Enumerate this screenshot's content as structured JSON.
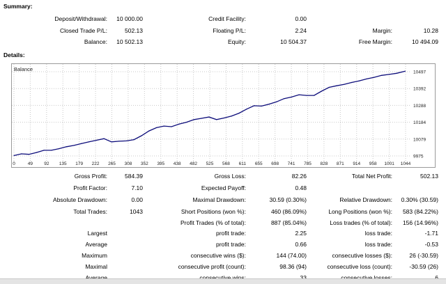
{
  "summary": {
    "title": "Summary:",
    "deposit_label": "Deposit/Withdrawal:",
    "deposit_value": "10 000.00",
    "credit_label": "Credit Facility:",
    "credit_value": "0.00",
    "closed_label": "Closed Trade P/L:",
    "closed_value": "502.13",
    "floating_label": "Floating P/L:",
    "floating_value": "2.24",
    "margin_label": "Margin:",
    "margin_value": "10.28",
    "balance_label": "Balance:",
    "balance_value": "10 502.13",
    "equity_label": "Equity:",
    "equity_value": "10 504.37",
    "free_margin_label": "Free Margin:",
    "free_margin_value": "10 494.09"
  },
  "details": {
    "title": "Details:",
    "rows": [
      {
        "c1l": "Gross Profit:",
        "c1v": "584.39",
        "c2l": "Gross Loss:",
        "c2v": "82.26",
        "c3l": "Total Net Profit:",
        "c3v": "502.13"
      },
      {
        "c1l": "Profit Factor:",
        "c1v": "7.10",
        "c2l": "Expected Payoff:",
        "c2v": "0.48",
        "c3l": "",
        "c3v": ""
      },
      {
        "c1l": "Absolute Drawdown:",
        "c1v": "0.00",
        "c2l": "Maximal Drawdown:",
        "c2v": "30.59 (0.30%)",
        "c3l": "Relative Drawdown:",
        "c3v": "0.30% (30.59)"
      },
      {
        "c1l": "Total Trades:",
        "c1v": "1043",
        "c2l": "Short Positions (won %):",
        "c2v": "460 (86.09%)",
        "c3l": "Long Positions (won %):",
        "c3v": "583 (84.22%)"
      },
      {
        "c1l": "",
        "c1v": "",
        "c2l": "Profit Trades (% of total):",
        "c2v": "887 (85.04%)",
        "c3l": "Loss trades (% of total):",
        "c3v": "156 (14.96%)"
      },
      {
        "c1l": "Largest",
        "c1v": "",
        "c2l": "profit trade:",
        "c2v": "2.25",
        "c3l": "loss trade:",
        "c3v": "-1.71"
      },
      {
        "c1l": "Average",
        "c1v": "",
        "c2l": "profit trade:",
        "c2v": "0.66",
        "c3l": "loss trade:",
        "c3v": "-0.53"
      },
      {
        "c1l": "Maximum",
        "c1v": "",
        "c2l": "consecutive wins ($):",
        "c2v": "144 (74.00)",
        "c3l": "consecutive losses ($):",
        "c3v": "26 (-30.59)"
      },
      {
        "c1l": "Maximal",
        "c1v": "",
        "c2l": "consecutive profit (count):",
        "c2v": "98.36 (94)",
        "c3l": "consecutive loss (count):",
        "c3v": "-30.59 (26)"
      },
      {
        "c1l": "Average",
        "c1v": "",
        "c2l": "consecutive wins:",
        "c2v": "33",
        "c3l": "consecutive losses:",
        "c3v": "6"
      }
    ]
  },
  "chart_data": {
    "type": "line",
    "title": "",
    "legend": "Balance",
    "series": [
      {
        "name": "Balance",
        "color": "#0c0c7a",
        "x": [
          0,
          20,
          40,
          60,
          80,
          100,
          120,
          140,
          160,
          180,
          200,
          220,
          240,
          260,
          280,
          300,
          320,
          340,
          360,
          380,
          400,
          420,
          440,
          460,
          480,
          500,
          520,
          540,
          560,
          580,
          600,
          620,
          640,
          660,
          680,
          700,
          720,
          740,
          760,
          780,
          800,
          820,
          840,
          860,
          880,
          900,
          920,
          940,
          960,
          980,
          1000,
          1020,
          1043
        ],
        "y": [
          9977,
          9988,
          9985,
          9996,
          10010,
          10010,
          10020,
          10032,
          10040,
          10052,
          10062,
          10072,
          10082,
          10062,
          10066,
          10068,
          10076,
          10100,
          10130,
          10150,
          10160,
          10156,
          10172,
          10184,
          10200,
          10208,
          10216,
          10200,
          10210,
          10222,
          10240,
          10265,
          10286,
          10284,
          10296,
          10310,
          10330,
          10340,
          10354,
          10350,
          10350,
          10376,
          10400,
          10410,
          10418,
          10430,
          10440,
          10452,
          10462,
          10474,
          10480,
          10487,
          10500
        ]
      }
    ],
    "xticks": [
      "0",
      "49",
      "92",
      "135",
      "179",
      "222",
      "265",
      "308",
      "352",
      "395",
      "438",
      "482",
      "525",
      "568",
      "611",
      "655",
      "698",
      "741",
      "785",
      "828",
      "871",
      "914",
      "958",
      "1001",
      "1044"
    ],
    "yticks": [
      "10497",
      "10392",
      "10288",
      "10184",
      "10079",
      "9975"
    ],
    "xlim": [
      0,
      1044
    ],
    "ylim": [
      9975,
      10497
    ],
    "grid": true
  }
}
